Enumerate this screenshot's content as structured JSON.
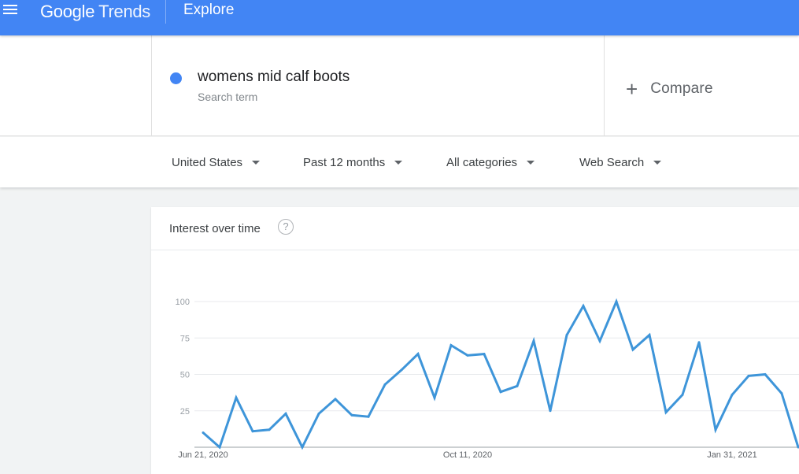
{
  "header": {
    "logo_google": "Google",
    "logo_trends": "Trends",
    "page_title": "Explore"
  },
  "search": {
    "term": "womens mid calf boots",
    "term_sublabel": "Search term",
    "term_color": "#4285f4",
    "compare_label": "Compare"
  },
  "filters": [
    {
      "label": "United States"
    },
    {
      "label": "Past 12 months"
    },
    {
      "label": "All categories"
    },
    {
      "label": "Web Search"
    }
  ],
  "card": {
    "title": "Interest over time",
    "help_glyph": "?"
  },
  "chart_data": {
    "type": "line",
    "y_ticks": [
      "100",
      "75",
      "50",
      "25"
    ],
    "ylim": [
      0,
      100
    ],
    "x_labels": [
      {
        "label": "Jun 21, 2020",
        "index": 0
      },
      {
        "label": "Oct 11, 2020",
        "index": 16
      },
      {
        "label": "Jan 31, 2021",
        "index": 32
      }
    ],
    "series": [
      {
        "color": "#3e95d9",
        "values": [
          10,
          0,
          34,
          11,
          12,
          23,
          0,
          23,
          33,
          22,
          21,
          43,
          53,
          64,
          34,
          70,
          63,
          64,
          38,
          42,
          73,
          25,
          77,
          97,
          73,
          100,
          67,
          77,
          24,
          36,
          72,
          12,
          36,
          49,
          50,
          37,
          0
        ]
      }
    ]
  }
}
